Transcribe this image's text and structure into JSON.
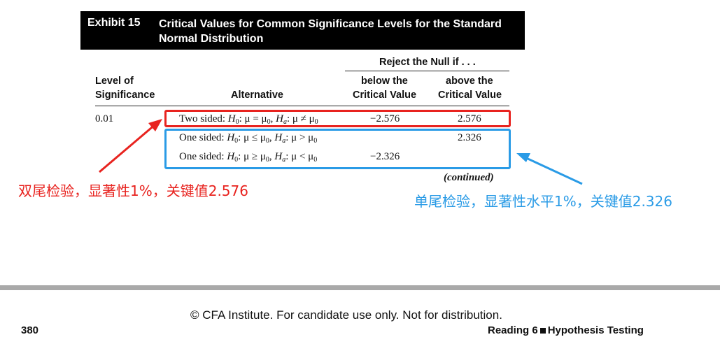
{
  "exhibit": {
    "label": "Exhibit 15",
    "title": "Critical Values for Common Significance Levels for the Standard Normal Distribution"
  },
  "table": {
    "reject_header": "Reject the Null if . . .",
    "columns": {
      "level_line1": "Level of",
      "level_line2": "Significance",
      "alternative": "Alternative",
      "below_line1": "below the",
      "below_line2": "Critical Value",
      "above_line1": "above the",
      "above_line2": "Critical Value"
    },
    "level": "0.01",
    "rows": [
      {
        "prefix": "Two sided: ",
        "h0_rel": ": μ = μ",
        "ha_rel": ": μ ≠ μ",
        "below": "−2.576",
        "above": "2.576"
      },
      {
        "prefix": "One sided: ",
        "h0_rel": ": μ ≤ μ",
        "ha_rel": ": μ > μ",
        "below": "",
        "above": "2.326"
      },
      {
        "prefix": "One sided: ",
        "h0_rel": ": μ ≥ μ",
        "ha_rel": ": μ < μ",
        "below": "−2.326",
        "above": ""
      }
    ],
    "symbols": {
      "H": "H",
      "sub0": "0",
      "suba": "a",
      "sep": ", "
    },
    "continued": "(continued)"
  },
  "annotations": {
    "two_sided_note": "双尾检验，显著性1%，关键值2.576",
    "one_sided_note": "单尾检验，显著性水平1%，关键值2.326",
    "red_color": "#e8231f",
    "blue_color": "#2a9be6"
  },
  "footer": {
    "copyright": "© CFA Institute. For candidate use only. Not for distribution.",
    "page_number": "380",
    "reading_prefix": "Reading 6",
    "reading_title": "Hypothesis Testing"
  }
}
